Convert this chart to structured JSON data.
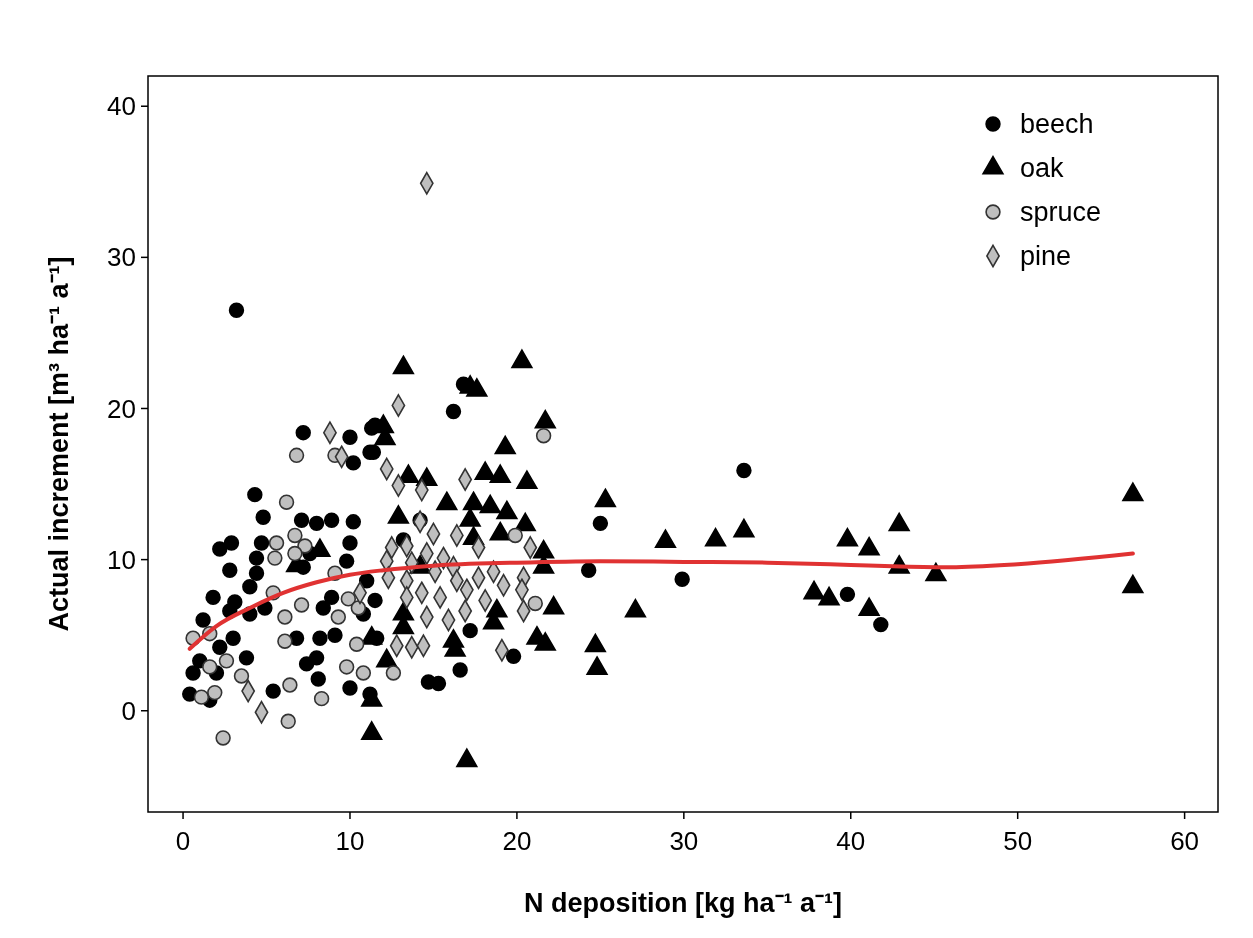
{
  "chart_data": {
    "type": "scatter",
    "xlabel": "N deposition  [kg ha⁻¹ a⁻¹]",
    "ylabel": "Actual increment [m³ ha⁻¹ a⁻¹]",
    "xlim": [
      -2.1,
      62
    ],
    "ylim": [
      -6.7,
      42
    ],
    "xticks": [
      0,
      10,
      20,
      30,
      40,
      50,
      60
    ],
    "yticks": [
      0,
      10,
      20,
      30,
      40
    ],
    "legend": "top right",
    "series": [
      {
        "name": "beech",
        "color": "#000000",
        "marker": "circle",
        "x": [
          3.2,
          7.2,
          10,
          11.3,
          11.2,
          10.2,
          4.3,
          4.8,
          7.1,
          8.0,
          8.9,
          10.2,
          2.2,
          2.9,
          4.7,
          2.8,
          4.4,
          4.4,
          4.0,
          7.6,
          7.2,
          1.8,
          3.1,
          2.8,
          4.0,
          4.9,
          1.2,
          8.9,
          10.0,
          9.8,
          11.0,
          8.4,
          10.8,
          6.8,
          8.2,
          9.1,
          7.4,
          8.0,
          0.6,
          1.0,
          2.0,
          3.8,
          0.4,
          1.6,
          5.4,
          8.1,
          10.0,
          11.2,
          3.0,
          2.2,
          16.8,
          16.2,
          16.6,
          14.7,
          15.3,
          17.2,
          19.8,
          11.6,
          11.5,
          14.2,
          13.2,
          11.4,
          11.5,
          25.0,
          24.3,
          29.9,
          33.6,
          39.8,
          41.8
        ],
        "values": [
          26.5,
          18.4,
          18.1,
          18.7,
          17.1,
          16.4,
          14.3,
          12.8,
          12.6,
          12.4,
          12.6,
          12.5,
          10.7,
          11.1,
          11.1,
          9.3,
          10.1,
          9.1,
          8.2,
          10.4,
          9.5,
          7.5,
          7.2,
          6.6,
          6.4,
          6.8,
          6.0,
          7.5,
          11.1,
          9.9,
          8.6,
          6.8,
          6.4,
          4.8,
          4.8,
          5.0,
          3.1,
          3.5,
          2.5,
          3.3,
          2.5,
          3.5,
          1.1,
          0.7,
          1.3,
          2.1,
          1.5,
          1.1,
          4.8,
          4.2,
          21.6,
          19.8,
          2.7,
          1.9,
          1.8,
          5.3,
          3.6,
          4.8,
          7.3,
          12.6,
          11.3,
          17.1,
          18.9,
          12.4,
          9.3,
          8.7,
          15.9,
          7.7,
          5.7
        ]
      },
      {
        "name": "oak",
        "color": "#000000",
        "marker": "triangle",
        "x": [
          13.2,
          20.3,
          17.2,
          17.6,
          12.0,
          12.1,
          21.7,
          19.3,
          20.6,
          18.1,
          19.0,
          13.5,
          14.6,
          15.8,
          12.9,
          17.4,
          18.4,
          19.4,
          17.2,
          19.0,
          20.5,
          21.6,
          21.6,
          22.2,
          21.2,
          21.7,
          18.8,
          18.6,
          16.2,
          16.3,
          13.2,
          12.2,
          11.3,
          11.3,
          17.0,
          14.2,
          17.4,
          13.2,
          8.2,
          6.8,
          11.3,
          25.3,
          27.1,
          24.7,
          24.8,
          28.9,
          31.9,
          33.6,
          37.8,
          38.7,
          39.8,
          41.1,
          41.1,
          42.9,
          42.9,
          45.1,
          56.9,
          56.9
        ],
        "values": [
          22.7,
          23.1,
          21.4,
          21.2,
          18.8,
          18.0,
          19.1,
          17.4,
          15.1,
          15.7,
          15.5,
          15.5,
          15.3,
          13.7,
          12.8,
          13.7,
          13.5,
          13.1,
          12.6,
          11.7,
          12.3,
          10.5,
          9.5,
          6.8,
          4.8,
          4.4,
          6.6,
          5.8,
          4.6,
          4.0,
          5.5,
          3.3,
          0.7,
          -1.5,
          -3.3,
          9.5,
          11.4,
          6.4,
          10.6,
          9.6,
          4.8,
          13.9,
          6.6,
          4.3,
          2.8,
          11.2,
          11.3,
          11.9,
          7.8,
          7.4,
          11.3,
          10.7,
          6.7,
          12.3,
          9.5,
          9.0,
          14.3,
          8.2
        ]
      },
      {
        "name": "spruce",
        "color": "#bfbfbf",
        "marker": "circle",
        "x": [
          6.8,
          6.2,
          5.6,
          6.7,
          7.3,
          5.5,
          6.7,
          9.1,
          5.4,
          7.1,
          6.1,
          9.3,
          9.9,
          10.5,
          0.6,
          1.6,
          2.6,
          1.6,
          3.5,
          6.4,
          1.1,
          1.9,
          8.3,
          6.3,
          2.4,
          6.1,
          10.4,
          9.8,
          10.8,
          9.1,
          21.6,
          19.9,
          21.1,
          12.6
        ],
        "values": [
          16.9,
          13.8,
          11.1,
          11.6,
          10.9,
          10.1,
          10.4,
          9.1,
          7.8,
          7.0,
          6.2,
          6.2,
          7.4,
          6.8,
          4.8,
          5.1,
          3.3,
          2.9,
          2.3,
          1.7,
          0.9,
          1.2,
          0.8,
          -0.7,
          -1.8,
          4.6,
          4.4,
          2.9,
          2.5,
          16.9,
          18.2,
          11.6,
          7.1,
          2.5
        ]
      },
      {
        "name": "pine",
        "color": "#bfbfbf",
        "marker": "diamond",
        "x": [
          14.6,
          8.8,
          9.5,
          10.6,
          3.9,
          4.7,
          12.9,
          12.2,
          12.9,
          14.3,
          16.9,
          14.2,
          15.0,
          16.4,
          12.5,
          13.4,
          14.6,
          15.6,
          17.7,
          20.8,
          12.2,
          13.7,
          16.2,
          18.6,
          12.3,
          13.4,
          15.1,
          16.4,
          17.7,
          19.2,
          20.4,
          13.4,
          14.3,
          15.4,
          17.0,
          20.3,
          18.1,
          14.6,
          15.9,
          16.9,
          20.4,
          12.8,
          13.7,
          14.4,
          19.1
        ],
        "values": [
          34.9,
          18.4,
          16.8,
          7.8,
          1.3,
          -0.1,
          20.2,
          16.0,
          14.9,
          14.6,
          15.3,
          12.5,
          11.7,
          11.6,
          10.8,
          10.9,
          10.4,
          10.1,
          10.8,
          10.8,
          9.9,
          9.8,
          9.5,
          9.2,
          8.8,
          8.6,
          9.2,
          8.6,
          8.8,
          8.3,
          8.8,
          7.5,
          7.8,
          7.5,
          8.0,
          8.0,
          7.3,
          6.2,
          6.0,
          6.6,
          6.6,
          4.3,
          4.2,
          4.3,
          4.0
        ]
      },
      {
        "type": "line",
        "color": "#e03232",
        "x": [
          0.4,
          2,
          4,
          6,
          8,
          10,
          12,
          15,
          20,
          25,
          30,
          35,
          40,
          43,
          46,
          50,
          56.9
        ],
        "values": [
          4.1,
          5.6,
          6.8,
          7.8,
          8.5,
          9.0,
          9.3,
          9.6,
          9.8,
          9.9,
          9.85,
          9.8,
          9.65,
          9.55,
          9.5,
          9.7,
          10.4
        ]
      }
    ]
  }
}
